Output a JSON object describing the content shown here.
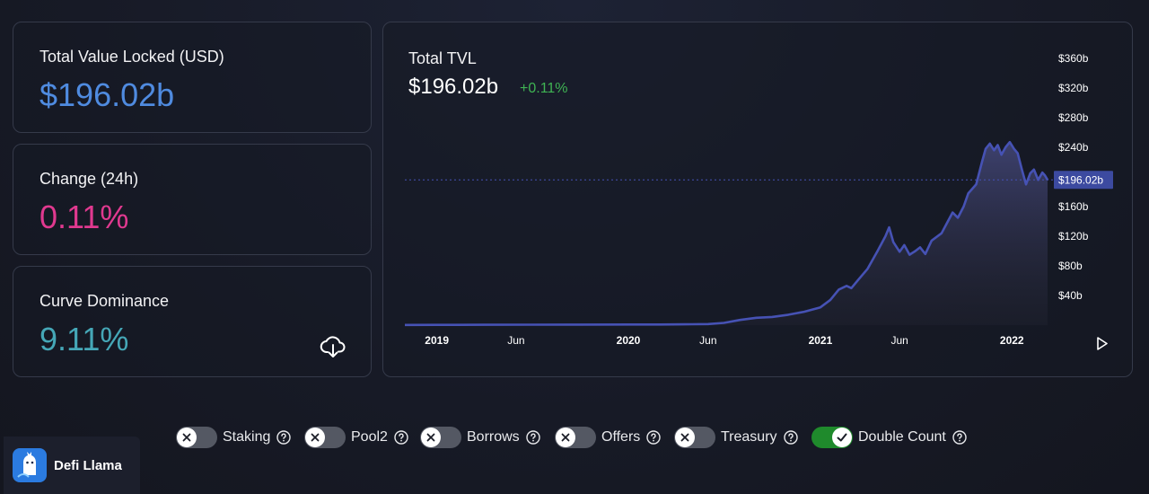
{
  "stats": {
    "tvl": {
      "label": "Total Value Locked (USD)",
      "value": "$196.02b",
      "color": "#4f8be0"
    },
    "change": {
      "label": "Change (24h)",
      "value": "0.11%",
      "color": "#e0398f"
    },
    "dominance": {
      "label": "Curve Dominance",
      "value": "9.11%",
      "color": "#45a7b7"
    }
  },
  "download_icon": "download-cloud-icon",
  "chart": {
    "title": "Total TVL",
    "value": "$196.02b",
    "change": "+0.11%",
    "change_color": "#3fb353",
    "line_color": "#4652b4",
    "play_icon": "play-icon"
  },
  "chart_data": {
    "type": "area",
    "title": "Total TVL",
    "y_ticks": [
      "$360b",
      "$320b",
      "$280b",
      "$240b",
      "$196.02b",
      "$160b",
      "$120b",
      "$80b",
      "$40b"
    ],
    "y_tick_values": [
      360,
      320,
      280,
      240,
      196.02,
      160,
      120,
      80,
      40
    ],
    "ylim": [
      0,
      370
    ],
    "x_ticks": [
      "2019",
      "Jun",
      "2020",
      "Jun",
      "2021",
      "Jun",
      "2022"
    ],
    "x_tick_dates": [
      "2019-01-01",
      "2019-06-01",
      "2020-01-01",
      "2020-06-01",
      "2021-01-01",
      "2021-06-01",
      "2022-01-01"
    ],
    "x_range": [
      "2018-11-01",
      "2022-03-10"
    ],
    "current_value": 196.02,
    "current_label": "$196.02b",
    "series": [
      {
        "points": [
          [
            "2018-11-01",
            0.3
          ],
          [
            "2019-01-01",
            0.4
          ],
          [
            "2019-04-01",
            0.5
          ],
          [
            "2019-07-01",
            0.6
          ],
          [
            "2019-10-01",
            0.7
          ],
          [
            "2020-01-01",
            0.8
          ],
          [
            "2020-03-01",
            0.9
          ],
          [
            "2020-05-01",
            1.2
          ],
          [
            "2020-06-01",
            1.5
          ],
          [
            "2020-07-01",
            3
          ],
          [
            "2020-08-01",
            7
          ],
          [
            "2020-09-01",
            10
          ],
          [
            "2020-10-01",
            11
          ],
          [
            "2020-11-01",
            14
          ],
          [
            "2020-12-01",
            18
          ],
          [
            "2021-01-01",
            24
          ],
          [
            "2021-01-20",
            34
          ],
          [
            "2021-02-05",
            48
          ],
          [
            "2021-02-20",
            53
          ],
          [
            "2021-03-01",
            50
          ],
          [
            "2021-03-15",
            62
          ],
          [
            "2021-04-01",
            76
          ],
          [
            "2021-04-20",
            100
          ],
          [
            "2021-05-05",
            120
          ],
          [
            "2021-05-12",
            132
          ],
          [
            "2021-05-20",
            112
          ],
          [
            "2021-06-01",
            99
          ],
          [
            "2021-06-10",
            108
          ],
          [
            "2021-06-20",
            95
          ],
          [
            "2021-07-01",
            100
          ],
          [
            "2021-07-10",
            105
          ],
          [
            "2021-07-20",
            96
          ],
          [
            "2021-08-01",
            114
          ],
          [
            "2021-08-20",
            124
          ],
          [
            "2021-09-01",
            140
          ],
          [
            "2021-09-10",
            152
          ],
          [
            "2021-09-20",
            145
          ],
          [
            "2021-10-01",
            160
          ],
          [
            "2021-10-10",
            178
          ],
          [
            "2021-10-25",
            190
          ],
          [
            "2021-11-05",
            220
          ],
          [
            "2021-11-12",
            238
          ],
          [
            "2021-11-20",
            245
          ],
          [
            "2021-11-28",
            236
          ],
          [
            "2021-12-05",
            243
          ],
          [
            "2021-12-12",
            230
          ],
          [
            "2021-12-20",
            240
          ],
          [
            "2021-12-28",
            247
          ],
          [
            "2022-01-05",
            238
          ],
          [
            "2022-01-12",
            232
          ],
          [
            "2022-01-20",
            210
          ],
          [
            "2022-01-28",
            190
          ],
          [
            "2022-02-05",
            205
          ],
          [
            "2022-02-12",
            210
          ],
          [
            "2022-02-20",
            196
          ],
          [
            "2022-02-28",
            206
          ],
          [
            "2022-03-05",
            202
          ],
          [
            "2022-03-10",
            196.02
          ]
        ]
      }
    ],
    "grid": false,
    "current_value_line": "dashed"
  },
  "toggles": [
    {
      "label": "Staking",
      "on": false,
      "help_icon": "help-circle-icon"
    },
    {
      "label": "Pool2",
      "on": false,
      "help_icon": "help-circle-icon"
    },
    {
      "label": "Borrows",
      "on": false,
      "help_icon": "help-circle-icon"
    },
    {
      "label": "Offers",
      "on": false,
      "help_icon": "help-circle-icon"
    },
    {
      "label": "Treasury",
      "on": false,
      "help_icon": "help-circle-icon"
    },
    {
      "label": "Double Count",
      "on": true,
      "help_icon": "help-circle-icon"
    }
  ],
  "brand": {
    "name": "Defi Llama",
    "logo_icon": "llama-logo-icon"
  }
}
